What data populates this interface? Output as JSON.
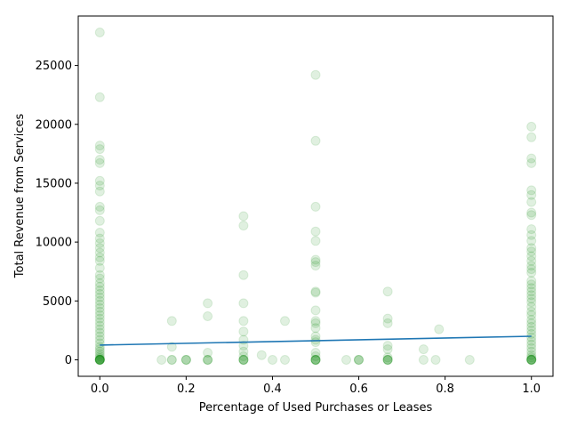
{
  "chart_data": {
    "type": "scatter",
    "xlabel": "Percentage of Used Purchases or Leases",
    "ylabel": "Total Revenue from Services",
    "xlim": [
      -0.05,
      1.05
    ],
    "ylim": [
      -1400,
      29200
    ],
    "xticks": [
      0.0,
      0.2,
      0.4,
      0.6,
      0.8,
      1.0
    ],
    "xtick_labels": [
      "0.0",
      "0.2",
      "0.4",
      "0.6",
      "0.8",
      "1.0"
    ],
    "yticks": [
      0,
      5000,
      10000,
      15000,
      20000,
      25000
    ],
    "ytick_labels": [
      "0",
      "5000",
      "10000",
      "15000",
      "20000",
      "25000"
    ],
    "grid": false,
    "point_color": "#008000",
    "point_opacity": 0.12,
    "line_color": "#1f77b4",
    "regression_line": [
      [
        0.0,
        1250
      ],
      [
        1.0,
        2000
      ]
    ],
    "points": [
      [
        0.0,
        27800
      ],
      [
        0.0,
        22300
      ],
      [
        0.0,
        18200
      ],
      [
        0.0,
        17900
      ],
      [
        0.0,
        17000
      ],
      [
        0.0,
        16700
      ],
      [
        0.0,
        15200
      ],
      [
        0.0,
        14800
      ],
      [
        0.0,
        14300
      ],
      [
        0.0,
        13000
      ],
      [
        0.0,
        12700
      ],
      [
        0.0,
        11800
      ],
      [
        0.0,
        10800
      ],
      [
        0.0,
        10300
      ],
      [
        0.0,
        9900
      ],
      [
        0.0,
        9500
      ],
      [
        0.0,
        9100
      ],
      [
        0.0,
        8700
      ],
      [
        0.0,
        8400
      ],
      [
        0.0,
        7800
      ],
      [
        0.0,
        7200
      ],
      [
        0.0,
        6900
      ],
      [
        0.0,
        6500
      ],
      [
        0.0,
        6200
      ],
      [
        0.0,
        5900
      ],
      [
        0.0,
        5600
      ],
      [
        0.0,
        5300
      ],
      [
        0.0,
        5000
      ],
      [
        0.0,
        4700
      ],
      [
        0.0,
        4400
      ],
      [
        0.0,
        4100
      ],
      [
        0.0,
        3800
      ],
      [
        0.0,
        3500
      ],
      [
        0.0,
        3200
      ],
      [
        0.0,
        2900
      ],
      [
        0.0,
        2600
      ],
      [
        0.0,
        2300
      ],
      [
        0.0,
        2000
      ],
      [
        0.0,
        1700
      ],
      [
        0.0,
        1400
      ],
      [
        0.0,
        1100
      ],
      [
        0.0,
        900
      ],
      [
        0.0,
        700
      ],
      [
        0.0,
        500
      ],
      [
        0.0,
        300
      ],
      [
        0.0,
        150
      ],
      [
        0.0,
        50
      ],
      [
        0.0,
        0
      ],
      [
        0.0,
        0
      ],
      [
        0.0,
        0
      ],
      [
        0.0,
        0
      ],
      [
        0.0,
        0
      ],
      [
        0.0,
        0
      ],
      [
        0.0,
        0
      ],
      [
        0.143,
        0
      ],
      [
        0.167,
        3300
      ],
      [
        0.167,
        1100
      ],
      [
        0.167,
        0
      ],
      [
        0.167,
        0
      ],
      [
        0.2,
        0
      ],
      [
        0.2,
        0
      ],
      [
        0.2,
        0
      ],
      [
        0.25,
        4800
      ],
      [
        0.25,
        3700
      ],
      [
        0.25,
        600
      ],
      [
        0.25,
        0
      ],
      [
        0.25,
        0
      ],
      [
        0.25,
        0
      ],
      [
        0.333,
        12200
      ],
      [
        0.333,
        11400
      ],
      [
        0.333,
        7200
      ],
      [
        0.333,
        4800
      ],
      [
        0.333,
        3300
      ],
      [
        0.333,
        2400
      ],
      [
        0.333,
        1700
      ],
      [
        0.333,
        1200
      ],
      [
        0.333,
        700
      ],
      [
        0.333,
        300
      ],
      [
        0.333,
        0
      ],
      [
        0.333,
        0
      ],
      [
        0.333,
        0
      ],
      [
        0.333,
        0
      ],
      [
        0.375,
        400
      ],
      [
        0.4,
        0
      ],
      [
        0.429,
        3300
      ],
      [
        0.429,
        0
      ],
      [
        0.5,
        24200
      ],
      [
        0.5,
        18600
      ],
      [
        0.5,
        13000
      ],
      [
        0.5,
        10900
      ],
      [
        0.5,
        10100
      ],
      [
        0.5,
        8500
      ],
      [
        0.5,
        8300
      ],
      [
        0.5,
        8000
      ],
      [
        0.5,
        5800
      ],
      [
        0.5,
        5700
      ],
      [
        0.5,
        4200
      ],
      [
        0.5,
        3300
      ],
      [
        0.5,
        3100
      ],
      [
        0.5,
        2700
      ],
      [
        0.5,
        2000
      ],
      [
        0.5,
        1700
      ],
      [
        0.5,
        1500
      ],
      [
        0.5,
        600
      ],
      [
        0.5,
        300
      ],
      [
        0.5,
        0
      ],
      [
        0.5,
        0
      ],
      [
        0.5,
        0
      ],
      [
        0.5,
        0
      ],
      [
        0.5,
        0
      ],
      [
        0.571,
        0
      ],
      [
        0.6,
        0
      ],
      [
        0.6,
        0
      ],
      [
        0.6,
        0
      ],
      [
        0.667,
        5800
      ],
      [
        0.667,
        3500
      ],
      [
        0.667,
        3100
      ],
      [
        0.667,
        1200
      ],
      [
        0.667,
        900
      ],
      [
        0.667,
        200
      ],
      [
        0.667,
        0
      ],
      [
        0.667,
        0
      ],
      [
        0.667,
        0
      ],
      [
        0.667,
        0
      ],
      [
        0.75,
        900
      ],
      [
        0.75,
        0
      ],
      [
        0.778,
        0
      ],
      [
        0.786,
        2600
      ],
      [
        0.857,
        0
      ],
      [
        1.0,
        19800
      ],
      [
        1.0,
        18900
      ],
      [
        1.0,
        17100
      ],
      [
        1.0,
        16700
      ],
      [
        1.0,
        14400
      ],
      [
        1.0,
        14000
      ],
      [
        1.0,
        13400
      ],
      [
        1.0,
        12500
      ],
      [
        1.0,
        12300
      ],
      [
        1.0,
        11100
      ],
      [
        1.0,
        10600
      ],
      [
        1.0,
        10100
      ],
      [
        1.0,
        9500
      ],
      [
        1.0,
        9200
      ],
      [
        1.0,
        8800
      ],
      [
        1.0,
        8400
      ],
      [
        1.0,
        8000
      ],
      [
        1.0,
        7700
      ],
      [
        1.0,
        7400
      ],
      [
        1.0,
        6700
      ],
      [
        1.0,
        6400
      ],
      [
        1.0,
        6100
      ],
      [
        1.0,
        5800
      ],
      [
        1.0,
        5500
      ],
      [
        1.0,
        5200
      ],
      [
        1.0,
        4900
      ],
      [
        1.0,
        4500
      ],
      [
        1.0,
        4100
      ],
      [
        1.0,
        3800
      ],
      [
        1.0,
        3400
      ],
      [
        1.0,
        3100
      ],
      [
        1.0,
        2800
      ],
      [
        1.0,
        2500
      ],
      [
        1.0,
        2200
      ],
      [
        1.0,
        1900
      ],
      [
        1.0,
        1600
      ],
      [
        1.0,
        1300
      ],
      [
        1.0,
        1000
      ],
      [
        1.0,
        700
      ],
      [
        1.0,
        400
      ],
      [
        1.0,
        200
      ],
      [
        1.0,
        50
      ],
      [
        1.0,
        0
      ],
      [
        1.0,
        0
      ],
      [
        1.0,
        0
      ],
      [
        1.0,
        0
      ],
      [
        1.0,
        0
      ]
    ]
  }
}
